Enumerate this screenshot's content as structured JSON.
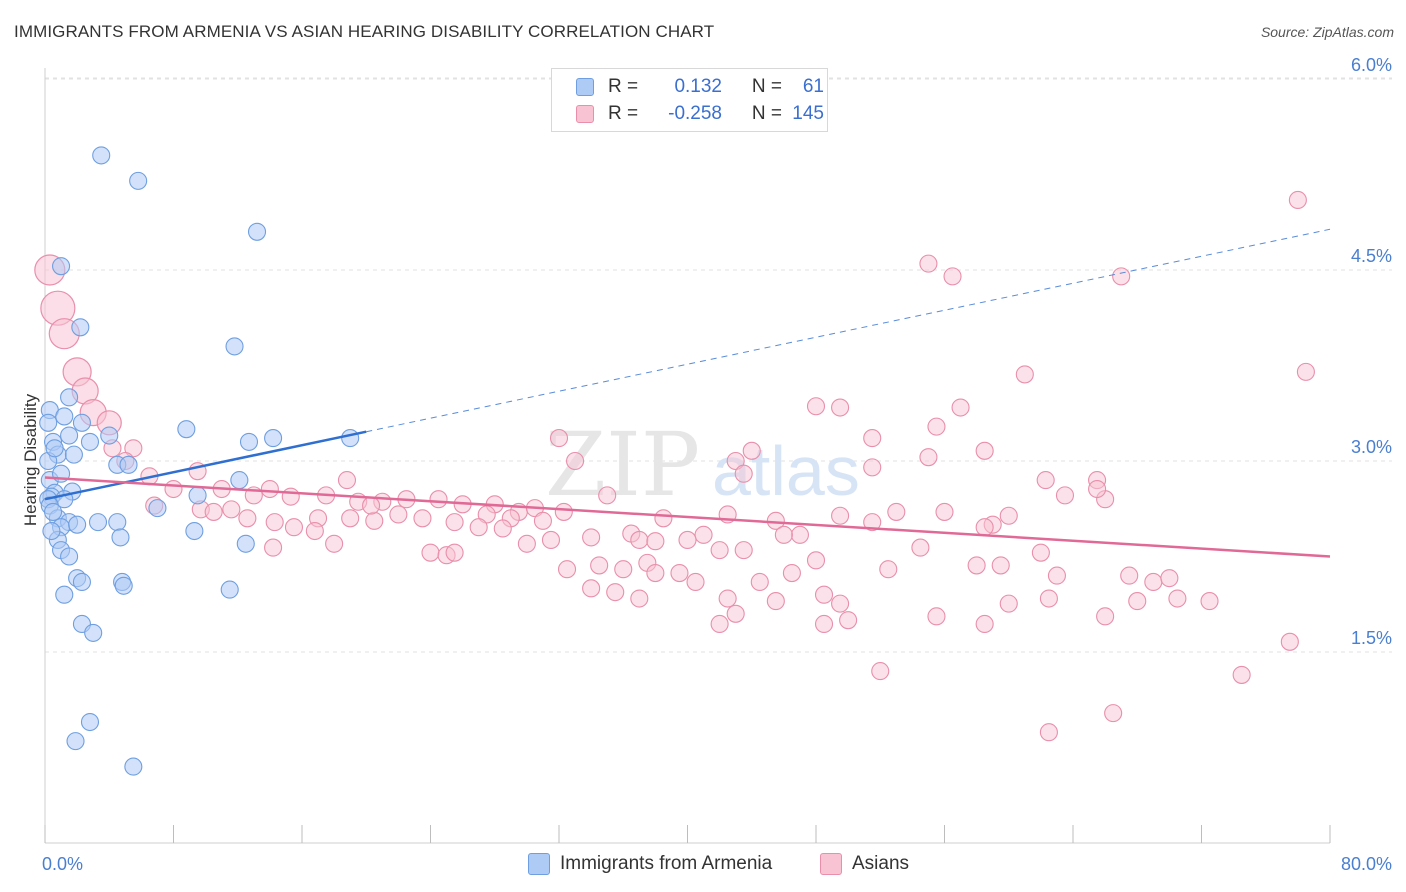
{
  "header": {
    "title": "IMMIGRANTS FROM ARMENIA VS ASIAN HEARING DISABILITY CORRELATION CHART",
    "source": "Source: ZipAtlas.com"
  },
  "legend": {
    "series1": {
      "r_label": "R =",
      "r_value": "0.132",
      "n_label": "N =",
      "n_value": "61"
    },
    "series2": {
      "r_label": "R =",
      "r_value": "-0.258",
      "n_label": "N =",
      "n_value": "145"
    }
  },
  "bottom_legend": {
    "series1": "Immigrants from Armenia",
    "series2": "Asians"
  },
  "watermark": {
    "zip": "ZIP",
    "atlas": "atlas"
  },
  "colors": {
    "blue_fill": "#aecbf5",
    "blue_stroke": "#6f9fe0",
    "blue_line": "#2f6fd0",
    "pink_fill": "#f8c3d3",
    "pink_stroke": "#e98fab",
    "pink_line": "#e06a95",
    "axis_text": "#4a7fd0",
    "grid": "#e2e2e2"
  },
  "chart_data": {
    "type": "scatter",
    "title": "IMMIGRANTS FROM ARMENIA VS ASIAN HEARING DISABILITY CORRELATION CHART",
    "xlabel": "",
    "ylabel": "Hearing Disability",
    "xlim": [
      0,
      80
    ],
    "ylim": [
      0,
      6.3
    ],
    "x_tick_labels": [
      "0.0%",
      "80.0%"
    ],
    "y_ticks": [
      1.5,
      3.0,
      4.5,
      6.0
    ],
    "y_tick_labels": [
      "1.5%",
      "3.0%",
      "4.5%",
      "6.0%"
    ],
    "grid": true,
    "legend_position": "top-center",
    "series": [
      {
        "name": "Immigrants from Armenia",
        "R": 0.132,
        "N": 61,
        "trend": {
          "solid": [
            [
              0,
              2.7
            ],
            [
              20,
              3.23
            ]
          ],
          "dashed": [
            [
              20,
              3.23
            ],
            [
              80,
              4.82
            ]
          ]
        },
        "points": [
          [
            3.5,
            5.4
          ],
          [
            5.8,
            5.2
          ],
          [
            13.2,
            4.8
          ],
          [
            1.0,
            4.53
          ],
          [
            2.2,
            4.05
          ],
          [
            11.8,
            3.9
          ],
          [
            1.5,
            3.5
          ],
          [
            0.3,
            3.4
          ],
          [
            1.2,
            3.35
          ],
          [
            8.8,
            3.25
          ],
          [
            0.2,
            3.3
          ],
          [
            2.3,
            3.3
          ],
          [
            1.5,
            3.2
          ],
          [
            0.5,
            3.15
          ],
          [
            2.8,
            3.15
          ],
          [
            4.0,
            3.2
          ],
          [
            12.7,
            3.15
          ],
          [
            14.2,
            3.18
          ],
          [
            19.0,
            3.18
          ],
          [
            0.8,
            3.05
          ],
          [
            1.8,
            3.05
          ],
          [
            0.2,
            3.0
          ],
          [
            4.5,
            2.97
          ],
          [
            5.2,
            2.97
          ],
          [
            0.3,
            2.85
          ],
          [
            12.1,
            2.85
          ],
          [
            0.6,
            2.75
          ],
          [
            1.7,
            2.76
          ],
          [
            0.4,
            2.72
          ],
          [
            0.2,
            2.7
          ],
          [
            1.2,
            2.7
          ],
          [
            9.5,
            2.73
          ],
          [
            0.3,
            2.65
          ],
          [
            7.0,
            2.63
          ],
          [
            0.8,
            2.55
          ],
          [
            1.5,
            2.52
          ],
          [
            3.3,
            2.52
          ],
          [
            4.5,
            2.52
          ],
          [
            1.0,
            2.48
          ],
          [
            2.0,
            2.5
          ],
          [
            9.3,
            2.45
          ],
          [
            0.8,
            2.38
          ],
          [
            4.7,
            2.4
          ],
          [
            12.5,
            2.35
          ],
          [
            1.0,
            2.3
          ],
          [
            1.5,
            2.25
          ],
          [
            2.0,
            2.08
          ],
          [
            2.3,
            2.05
          ],
          [
            4.8,
            2.05
          ],
          [
            4.9,
            2.02
          ],
          [
            1.2,
            1.95
          ],
          [
            11.5,
            1.99
          ],
          [
            2.3,
            1.72
          ],
          [
            3.0,
            1.65
          ],
          [
            2.8,
            0.95
          ],
          [
            1.9,
            0.8
          ],
          [
            5.5,
            0.6
          ],
          [
            0.5,
            2.6
          ],
          [
            1.0,
            2.9
          ],
          [
            0.6,
            3.1
          ],
          [
            0.4,
            2.45
          ]
        ]
      },
      {
        "name": "Asians",
        "R": -0.258,
        "N": 145,
        "trend": {
          "solid": [
            [
              0,
              2.87
            ],
            [
              80,
              2.25
            ]
          ]
        },
        "big_points": [
          [
            0.3,
            4.5
          ],
          [
            0.8,
            4.2
          ],
          [
            1.2,
            4.0
          ],
          [
            2.0,
            3.7
          ],
          [
            2.5,
            3.55
          ],
          [
            3.0,
            3.38
          ],
          [
            4.0,
            3.3
          ]
        ],
        "points": [
          [
            78.0,
            5.05
          ],
          [
            55.0,
            4.55
          ],
          [
            56.5,
            4.45
          ],
          [
            67.0,
            4.45
          ],
          [
            78.5,
            3.7
          ],
          [
            61.0,
            3.68
          ],
          [
            48.0,
            3.43
          ],
          [
            49.5,
            3.42
          ],
          [
            57.0,
            3.42
          ],
          [
            4.2,
            3.1
          ],
          [
            5.5,
            3.1
          ],
          [
            32.0,
            3.18
          ],
          [
            51.5,
            3.18
          ],
          [
            55.5,
            3.27
          ],
          [
            44.0,
            3.08
          ],
          [
            58.5,
            3.08
          ],
          [
            33.0,
            3.0
          ],
          [
            43.0,
            3.0
          ],
          [
            55.0,
            3.03
          ],
          [
            9.5,
            2.92
          ],
          [
            18.8,
            2.85
          ],
          [
            6.5,
            2.88
          ],
          [
            51.5,
            2.95
          ],
          [
            5.0,
            3.0
          ],
          [
            43.5,
            2.9
          ],
          [
            62.3,
            2.85
          ],
          [
            65.5,
            2.85
          ],
          [
            8.0,
            2.78
          ],
          [
            11.0,
            2.78
          ],
          [
            14.0,
            2.78
          ],
          [
            15.3,
            2.72
          ],
          [
            13.0,
            2.73
          ],
          [
            17.5,
            2.73
          ],
          [
            19.5,
            2.68
          ],
          [
            21.0,
            2.68
          ],
          [
            22.5,
            2.7
          ],
          [
            24.5,
            2.7
          ],
          [
            26.0,
            2.66
          ],
          [
            28.0,
            2.66
          ],
          [
            29.5,
            2.6
          ],
          [
            30.5,
            2.63
          ],
          [
            6.8,
            2.65
          ],
          [
            9.7,
            2.62
          ],
          [
            10.5,
            2.6
          ],
          [
            11.6,
            2.62
          ],
          [
            12.6,
            2.55
          ],
          [
            14.3,
            2.52
          ],
          [
            15.5,
            2.48
          ],
          [
            17.0,
            2.55
          ],
          [
            19.0,
            2.55
          ],
          [
            20.5,
            2.53
          ],
          [
            22.0,
            2.58
          ],
          [
            23.5,
            2.55
          ],
          [
            25.5,
            2.52
          ],
          [
            27.5,
            2.58
          ],
          [
            29.0,
            2.55
          ],
          [
            31.0,
            2.53
          ],
          [
            35.0,
            2.73
          ],
          [
            36.5,
            2.43
          ],
          [
            38.5,
            2.55
          ],
          [
            41.0,
            2.42
          ],
          [
            42.5,
            2.58
          ],
          [
            45.5,
            2.53
          ],
          [
            47.0,
            2.42
          ],
          [
            49.5,
            2.57
          ],
          [
            51.5,
            2.52
          ],
          [
            53.0,
            2.6
          ],
          [
            56.0,
            2.6
          ],
          [
            59.0,
            2.5
          ],
          [
            60.0,
            2.57
          ],
          [
            63.5,
            2.73
          ],
          [
            66.0,
            2.7
          ],
          [
            65.5,
            2.78
          ],
          [
            14.2,
            2.32
          ],
          [
            16.8,
            2.45
          ],
          [
            18.0,
            2.35
          ],
          [
            24.0,
            2.28
          ],
          [
            25.0,
            2.26
          ],
          [
            25.5,
            2.28
          ],
          [
            27.0,
            2.48
          ],
          [
            28.5,
            2.47
          ],
          [
            30.0,
            2.35
          ],
          [
            31.5,
            2.38
          ],
          [
            34.0,
            2.4
          ],
          [
            37.0,
            2.38
          ],
          [
            38.0,
            2.37
          ],
          [
            40.0,
            2.38
          ],
          [
            42.0,
            2.3
          ],
          [
            43.5,
            2.3
          ],
          [
            48.0,
            2.22
          ],
          [
            54.5,
            2.32
          ],
          [
            58.5,
            2.48
          ],
          [
            62.0,
            2.28
          ],
          [
            32.5,
            2.15
          ],
          [
            34.5,
            2.18
          ],
          [
            36.0,
            2.15
          ],
          [
            37.5,
            2.2
          ],
          [
            38.0,
            2.12
          ],
          [
            39.5,
            2.12
          ],
          [
            42.5,
            1.92
          ],
          [
            44.5,
            2.05
          ],
          [
            46.5,
            2.12
          ],
          [
            52.5,
            2.15
          ],
          [
            58.0,
            2.18
          ],
          [
            59.5,
            2.18
          ],
          [
            63.0,
            2.1
          ],
          [
            67.5,
            2.1
          ],
          [
            69.0,
            2.05
          ],
          [
            70.0,
            2.08
          ],
          [
            34.0,
            2.0
          ],
          [
            35.5,
            1.97
          ],
          [
            37.0,
            1.92
          ],
          [
            45.5,
            1.9
          ],
          [
            48.5,
            1.95
          ],
          [
            49.5,
            1.88
          ],
          [
            60.0,
            1.88
          ],
          [
            62.5,
            1.92
          ],
          [
            68.0,
            1.9
          ],
          [
            70.5,
            1.92
          ],
          [
            72.5,
            1.9
          ],
          [
            43.0,
            1.8
          ],
          [
            42.0,
            1.72
          ],
          [
            50.0,
            1.75
          ],
          [
            48.5,
            1.72
          ],
          [
            55.5,
            1.78
          ],
          [
            58.5,
            1.72
          ],
          [
            66.0,
            1.78
          ],
          [
            77.5,
            1.58
          ],
          [
            52.0,
            1.35
          ],
          [
            74.5,
            1.32
          ],
          [
            66.5,
            1.02
          ],
          [
            62.5,
            0.87
          ],
          [
            20.3,
            2.65
          ],
          [
            32.3,
            2.6
          ],
          [
            40.5,
            2.05
          ],
          [
            46.0,
            2.42
          ]
        ]
      }
    ]
  }
}
